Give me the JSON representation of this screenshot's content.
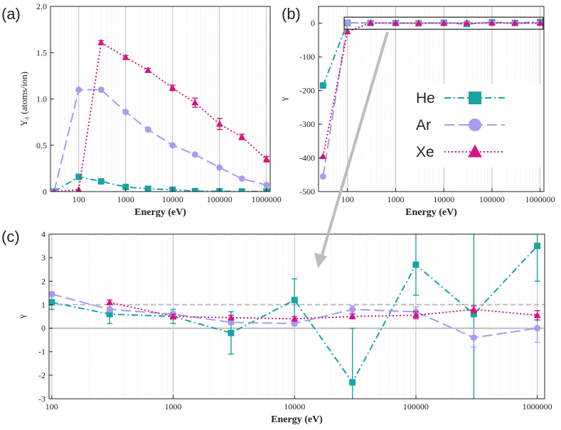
{
  "chart_data": [
    {
      "panel": "(a)",
      "type": "line",
      "xlabel": "Energy (eV)",
      "ylabel": "Y₀ (atoms/ion)",
      "xscale": "log",
      "xlim": [
        25,
        1200000
      ],
      "ylim": [
        0,
        2.0
      ],
      "xticks": [
        100,
        1000,
        10000,
        100000,
        1000000
      ],
      "xtick_labels": [
        "100",
        "1000",
        "10000",
        "100000",
        "1000000"
      ],
      "yticks": [
        0,
        0.5,
        1.0,
        1.5,
        2.0
      ],
      "ytick_labels": [
        "0",
        "0.5",
        "1.0",
        "1.5",
        "2.0"
      ],
      "series": [
        {
          "name": "He",
          "color": "#1aa3a3",
          "marker": "square",
          "dash": "dashdot",
          "x": [
            30,
            100,
            300,
            1000,
            3000,
            10000,
            30000,
            100000,
            300000,
            1000000
          ],
          "y": [
            0.0,
            0.16,
            0.11,
            0.05,
            0.03,
            0.02,
            0.005,
            0.003,
            0.002,
            0.001
          ],
          "err": [
            0,
            0,
            0,
            0,
            0,
            0,
            0,
            0,
            0,
            0
          ]
        },
        {
          "name": "Ar",
          "color": "#a79cf0",
          "marker": "circle",
          "dash": "longdash",
          "x": [
            30,
            100,
            300,
            1000,
            3000,
            10000,
            30000,
            100000,
            300000,
            1000000
          ],
          "y": [
            0.0,
            1.1,
            1.1,
            0.86,
            0.67,
            0.5,
            0.4,
            0.26,
            0.14,
            0.07
          ],
          "err": [
            0,
            0,
            0,
            0,
            0,
            0,
            0,
            0,
            0,
            0
          ]
        },
        {
          "name": "Xe",
          "color": "#d6157f",
          "marker": "triangle",
          "dash": "dotted",
          "x": [
            30,
            100,
            300,
            1000,
            3000,
            10000,
            30000,
            100000,
            300000,
            1000000
          ],
          "y": [
            0.0,
            0.02,
            1.61,
            1.45,
            1.31,
            1.12,
            0.96,
            0.73,
            0.59,
            0.35
          ],
          "err": [
            0,
            0,
            0.02,
            0.02,
            0.02,
            0.03,
            0.05,
            0.06,
            0.03,
            0.03
          ]
        }
      ]
    },
    {
      "panel": "(b)",
      "type": "line",
      "xlabel": "Energy (eV)",
      "ylabel": "γ",
      "xscale": "log",
      "xlim": [
        25,
        1200000
      ],
      "ylim": [
        -500,
        50
      ],
      "xticks": [
        100,
        1000,
        10000,
        100000,
        1000000
      ],
      "xtick_labels": [
        "100",
        "1000",
        "10000",
        "100000",
        "1000000"
      ],
      "yticks": [
        -500,
        -400,
        -300,
        -200,
        -100,
        0
      ],
      "ytick_labels": [
        "-500",
        "-400",
        "-300",
        "-200",
        "-100",
        "0"
      ],
      "series": [
        {
          "name": "He",
          "color": "#1aa3a3",
          "marker": "square",
          "dash": "dashdot",
          "x": [
            31,
            100,
            300,
            1000,
            3000,
            10000,
            30000,
            100000,
            300000,
            1000000
          ],
          "y": [
            -185,
            1.1,
            0.6,
            0.5,
            -0.2,
            1.2,
            -2.3,
            2.7,
            0.6,
            3.5
          ]
        },
        {
          "name": "Ar",
          "color": "#a79cf0",
          "marker": "circle",
          "dash": "longdash",
          "x": [
            31,
            100,
            300,
            1000,
            3000,
            10000,
            30000,
            100000,
            300000,
            1000000
          ],
          "y": [
            -455,
            1.45,
            0.8,
            0.6,
            0.25,
            0.2,
            0.8,
            0.7,
            -0.4,
            0.0
          ]
        },
        {
          "name": "Xe",
          "color": "#d6157f",
          "marker": "triangle",
          "dash": "dotted",
          "x": [
            31,
            100,
            300,
            1000,
            3000,
            10000,
            30000,
            100000,
            300000,
            1000000
          ],
          "y": [
            -395,
            -25,
            1.1,
            0.5,
            0.45,
            0.4,
            0.5,
            0.55,
            0.8,
            0.55
          ]
        }
      ],
      "legend": {
        "placement": "center-right",
        "entries": [
          "He",
          "Ar",
          "Xe"
        ]
      }
    },
    {
      "panel": "(c)",
      "type": "line",
      "xlabel": "Energy (eV)",
      "ylabel": "γ",
      "xscale": "log",
      "xlim": [
        95,
        1150000
      ],
      "ylim": [
        -3,
        4
      ],
      "xticks": [
        100,
        1000,
        10000,
        100000,
        1000000
      ],
      "xtick_labels": [
        "100",
        "1000",
        "10000",
        "100000",
        "1000000"
      ],
      "yticks": [
        -3,
        -2,
        -1,
        0,
        1,
        2,
        3,
        4
      ],
      "ytick_labels": [
        "-3",
        "-2",
        "-1",
        "0",
        "1",
        "2",
        "3",
        "4"
      ],
      "reference_lines": [
        1,
        0
      ],
      "series": [
        {
          "name": "He",
          "color": "#1aa3a3",
          "marker": "square",
          "dash": "dashdot",
          "x": [
            100,
            300,
            1000,
            3000,
            10000,
            30000,
            100000,
            300000,
            1000000
          ],
          "y": [
            1.1,
            0.6,
            0.5,
            -0.2,
            1.2,
            -2.3,
            2.7,
            0.6,
            3.5
          ],
          "err": [
            0.3,
            0.4,
            0.3,
            0.9,
            0.9,
            2.3,
            1.3,
            4.0,
            1.5
          ]
        },
        {
          "name": "Ar",
          "color": "#a79cf0",
          "marker": "circle",
          "dash": "longdash",
          "x": [
            100,
            300,
            1000,
            3000,
            10000,
            30000,
            100000,
            300000,
            1000000
          ],
          "y": [
            1.45,
            0.8,
            0.6,
            0.25,
            0.2,
            0.8,
            0.7,
            -0.4,
            0.0
          ],
          "err": [
            0.1,
            0.1,
            0.1,
            0.1,
            0.1,
            0.15,
            0.2,
            0.4,
            0.6
          ]
        },
        {
          "name": "Xe",
          "color": "#d6157f",
          "marker": "triangle",
          "dash": "dotted",
          "x": [
            300,
            1000,
            3000,
            10000,
            30000,
            100000,
            300000,
            1000000
          ],
          "y": [
            1.1,
            0.5,
            0.45,
            0.4,
            0.5,
            0.55,
            0.8,
            0.55
          ],
          "err": [
            0.1,
            0.1,
            0.1,
            0.1,
            0.1,
            0.15,
            0.15,
            0.2
          ]
        }
      ]
    }
  ]
}
